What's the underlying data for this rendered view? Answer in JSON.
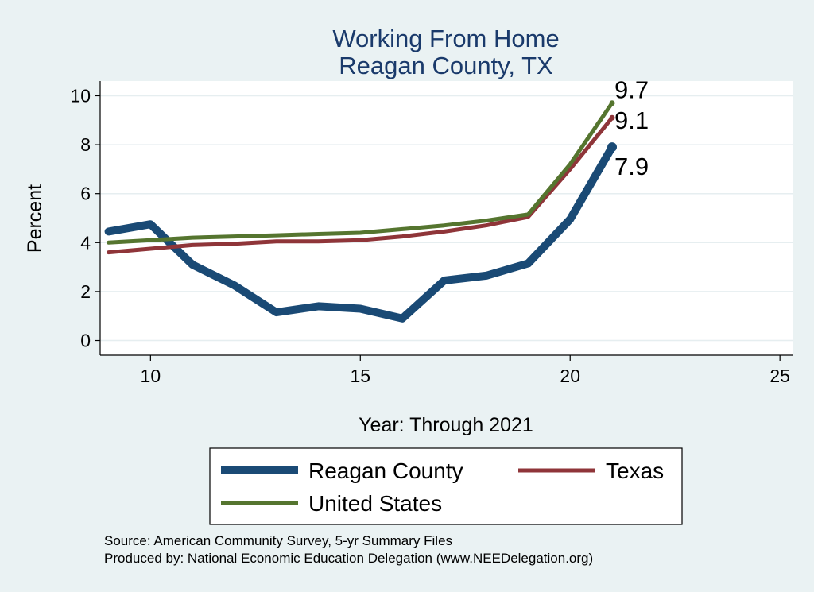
{
  "chart_data": {
    "type": "line",
    "title": "Working From Home",
    "subtitle": "Reagan County, TX",
    "xlabel": "Year: Through 2021",
    "ylabel": "Percent",
    "xlim": [
      8.8,
      25.3
    ],
    "ylim": [
      -0.6,
      10.6
    ],
    "x_ticks": [
      10,
      15,
      20,
      25
    ],
    "y_ticks": [
      0,
      2,
      4,
      6,
      8,
      10
    ],
    "grid": true,
    "legend_position": "bottom",
    "series": [
      {
        "name": "Reagan County",
        "color": "#1a4a75",
        "x": [
          9,
          10,
          11,
          12,
          13,
          14,
          15,
          16,
          17,
          18,
          19,
          20,
          21
        ],
        "values": [
          4.45,
          4.75,
          3.1,
          2.25,
          1.15,
          1.4,
          1.3,
          0.9,
          2.45,
          2.65,
          3.15,
          4.95,
          7.9
        ],
        "end_label": "7.9"
      },
      {
        "name": "Texas",
        "color": "#8f3539",
        "x": [
          9,
          10,
          11,
          12,
          13,
          14,
          15,
          16,
          17,
          18,
          19,
          20,
          21
        ],
        "values": [
          3.6,
          3.75,
          3.9,
          3.95,
          4.05,
          4.05,
          4.1,
          4.25,
          4.45,
          4.7,
          5.05,
          7.0,
          9.1
        ],
        "end_label": "9.1"
      },
      {
        "name": "United States",
        "color": "#55752f",
        "x": [
          9,
          10,
          11,
          12,
          13,
          14,
          15,
          16,
          17,
          18,
          19,
          20,
          21
        ],
        "values": [
          4.0,
          4.1,
          4.2,
          4.25,
          4.3,
          4.35,
          4.4,
          4.55,
          4.7,
          4.9,
          5.15,
          7.2,
          9.7
        ],
        "end_label": "9.7"
      }
    ]
  },
  "notes": {
    "source": "Source: American Community Survey, 5-yr Summary Files",
    "produced_by": "Produced by: National Economic Education Delegation (www.NEEDelegation.org)"
  }
}
